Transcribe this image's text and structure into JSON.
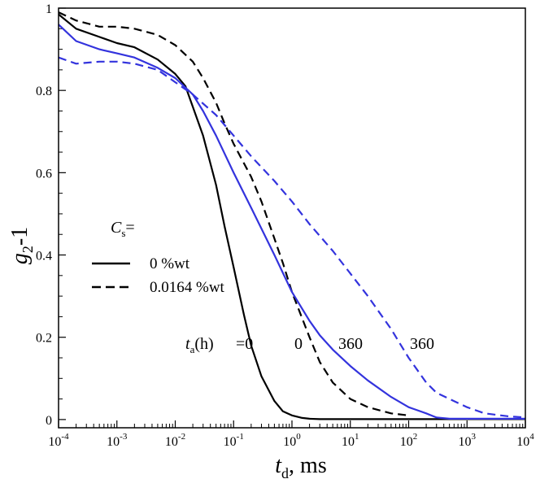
{
  "chart_data": {
    "type": "line",
    "title": "",
    "xscale": "log",
    "xlim": [
      0.0001,
      10000
    ],
    "ylim": [
      -0.02,
      1.0
    ],
    "x_ticks": [
      {
        "base": "10",
        "exp": "-4"
      },
      {
        "base": "10",
        "exp": "-3"
      },
      {
        "base": "10",
        "exp": "-2"
      },
      {
        "base": "10",
        "exp": "-1"
      },
      {
        "base": "10",
        "exp": "0"
      },
      {
        "base": "10",
        "exp": "1"
      },
      {
        "base": "10",
        "exp": "2"
      },
      {
        "base": "10",
        "exp": "3"
      },
      {
        "base": "10",
        "exp": "4"
      }
    ],
    "y_ticks": [
      "0",
      "0.2",
      "0.4",
      "0.6",
      "0.8",
      "1"
    ],
    "xlabel": {
      "main": "t",
      "sub": "d",
      "suffix": ", ms"
    },
    "ylabel": {
      "main": "g",
      "sub": "2",
      "suffix": "-1"
    },
    "legend": {
      "position": "center-left",
      "title_main": "C",
      "title_sub": "s",
      "title_suffix": "=",
      "entries": [
        {
          "label": "0 %wt",
          "style": "solid"
        },
        {
          "label": "0.0164 %wt",
          "style": "dashed"
        }
      ]
    },
    "annotation": {
      "prefix_main": "t",
      "prefix_sub": "a",
      "prefix_suffix": "(h)",
      "values": [
        "=0",
        "0",
        "360",
        "360"
      ]
    },
    "colors": {
      "black": "#000000",
      "blue": "#3333dd"
    },
    "series": [
      {
        "name": "0 %wt, ta=0 h",
        "color": "black",
        "style": "solid",
        "x": [
          0.0001,
          0.0002,
          0.0005,
          0.001,
          0.002,
          0.005,
          0.01,
          0.015,
          0.02,
          0.03,
          0.05,
          0.07,
          0.1,
          0.15,
          0.2,
          0.3,
          0.5,
          0.7,
          1,
          1.5,
          2,
          3,
          5,
          10,
          100,
          1000,
          10000
        ],
        "y": [
          0.985,
          0.95,
          0.93,
          0.915,
          0.905,
          0.875,
          0.84,
          0.81,
          0.76,
          0.69,
          0.57,
          0.47,
          0.37,
          0.255,
          0.18,
          0.105,
          0.045,
          0.02,
          0.01,
          0.004,
          0.002,
          0.001,
          0.001,
          0.001,
          0.001,
          0.001,
          0.001
        ]
      },
      {
        "name": "0.0164 %wt, ta=0 h",
        "color": "black",
        "style": "dashed",
        "x": [
          0.0001,
          0.0002,
          0.0005,
          0.001,
          0.002,
          0.005,
          0.01,
          0.02,
          0.03,
          0.05,
          0.07,
          0.1,
          0.2,
          0.3,
          0.5,
          0.7,
          1,
          2,
          3,
          5,
          10,
          20,
          50,
          100
        ],
        "y": [
          0.99,
          0.97,
          0.955,
          0.955,
          0.95,
          0.935,
          0.91,
          0.87,
          0.83,
          0.77,
          0.72,
          0.67,
          0.59,
          0.53,
          0.44,
          0.38,
          0.31,
          0.2,
          0.14,
          0.09,
          0.05,
          0.03,
          0.015,
          0.01
        ]
      },
      {
        "name": "0 %wt, ta=360 h",
        "color": "blue",
        "style": "solid",
        "x": [
          0.0001,
          0.0002,
          0.0005,
          0.001,
          0.002,
          0.005,
          0.01,
          0.02,
          0.03,
          0.05,
          0.1,
          0.2,
          0.5,
          1,
          2,
          3,
          5,
          10,
          20,
          50,
          100,
          200,
          300,
          500,
          1000,
          10000
        ],
        "y": [
          0.96,
          0.92,
          0.9,
          0.89,
          0.88,
          0.855,
          0.83,
          0.79,
          0.75,
          0.69,
          0.6,
          0.515,
          0.4,
          0.31,
          0.24,
          0.205,
          0.17,
          0.13,
          0.095,
          0.055,
          0.03,
          0.015,
          0.005,
          0.002,
          0.002,
          0.002
        ]
      },
      {
        "name": "0.0164 %wt, ta=360 h",
        "color": "blue",
        "style": "dashed",
        "x": [
          0.0001,
          0.0002,
          0.0005,
          0.001,
          0.002,
          0.005,
          0.01,
          0.02,
          0.05,
          0.1,
          0.2,
          0.5,
          1,
          2,
          5,
          10,
          20,
          50,
          100,
          200,
          300,
          500,
          1000,
          2000,
          5000,
          10000
        ],
        "y": [
          0.88,
          0.865,
          0.87,
          0.87,
          0.865,
          0.85,
          0.82,
          0.79,
          0.74,
          0.69,
          0.64,
          0.58,
          0.53,
          0.475,
          0.41,
          0.355,
          0.3,
          0.22,
          0.15,
          0.09,
          0.065,
          0.05,
          0.03,
          0.015,
          0.008,
          0.005
        ]
      }
    ]
  }
}
